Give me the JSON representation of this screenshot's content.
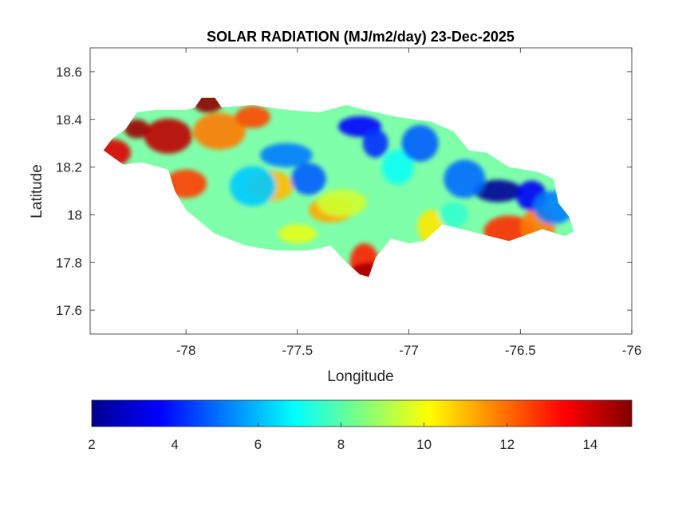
{
  "title": "SOLAR RADIATION (MJ/m2/day) 23-Dec-2025",
  "xlabel": "Longitude",
  "ylabel": "Latitude",
  "colors": {
    "axis": "#262626",
    "background": "#ffffff",
    "jet": [
      "#00008f",
      "#0000ff",
      "#00ffff",
      "#ffff00",
      "#ff0000",
      "#800000"
    ]
  },
  "chart_data": {
    "type": "heatmap",
    "map_region": "island-shaped filled contour field",
    "xlim": [
      -78.43,
      -76
    ],
    "ylim": [
      17.5,
      18.7
    ],
    "xticks": [
      -78,
      -77.5,
      -77,
      -76.5,
      -76
    ],
    "xtick_labels": [
      "-78",
      "-77.5",
      "-77",
      "-76.5",
      "-76"
    ],
    "yticks": [
      17.6,
      17.8,
      18,
      18.2,
      18.4,
      18.6
    ],
    "ytick_labels": [
      "17.6",
      "17.8",
      "18",
      "18.2",
      "18.4",
      "18.6"
    ],
    "colorbar": {
      "orientation": "horizontal",
      "colormap": "jet",
      "range": [
        2,
        15
      ],
      "ticks": [
        2,
        4,
        6,
        8,
        10,
        12,
        14
      ],
      "tick_labels": [
        "2",
        "4",
        "6",
        "8",
        "10",
        "12",
        "14"
      ]
    },
    "outline": [
      [
        -78.37,
        18.27
      ],
      [
        -78.33,
        18.32
      ],
      [
        -78.27,
        18.36
      ],
      [
        -78.22,
        18.43
      ],
      [
        -78.13,
        18.44
      ],
      [
        -78.0,
        18.44
      ],
      [
        -77.96,
        18.45
      ],
      [
        -77.93,
        18.49
      ],
      [
        -77.87,
        18.49
      ],
      [
        -77.84,
        18.45
      ],
      [
        -77.7,
        18.46
      ],
      [
        -77.55,
        18.44
      ],
      [
        -77.4,
        18.43
      ],
      [
        -77.28,
        18.46
      ],
      [
        -77.2,
        18.44
      ],
      [
        -77.05,
        18.41
      ],
      [
        -76.9,
        18.39
      ],
      [
        -76.8,
        18.35
      ],
      [
        -76.73,
        18.27
      ],
      [
        -76.65,
        18.26
      ],
      [
        -76.55,
        18.2
      ],
      [
        -76.42,
        18.18
      ],
      [
        -76.35,
        18.15
      ],
      [
        -76.33,
        18.05
      ],
      [
        -76.28,
        17.99
      ],
      [
        -76.26,
        17.93
      ],
      [
        -76.3,
        17.91
      ],
      [
        -76.4,
        17.94
      ],
      [
        -76.55,
        17.89
      ],
      [
        -76.68,
        17.92
      ],
      [
        -76.85,
        17.96
      ],
      [
        -76.93,
        17.89
      ],
      [
        -77.0,
        17.88
      ],
      [
        -77.08,
        17.9
      ],
      [
        -77.15,
        17.82
      ],
      [
        -77.18,
        17.74
      ],
      [
        -77.22,
        17.75
      ],
      [
        -77.28,
        17.8
      ],
      [
        -77.35,
        17.87
      ],
      [
        -77.45,
        17.85
      ],
      [
        -77.6,
        17.85
      ],
      [
        -77.73,
        17.87
      ],
      [
        -77.87,
        17.92
      ],
      [
        -78.0,
        18.02
      ],
      [
        -78.05,
        18.1
      ],
      [
        -78.08,
        18.19
      ],
      [
        -78.2,
        18.22
      ],
      [
        -78.28,
        18.21
      ],
      [
        -78.37,
        18.27
      ]
    ],
    "hotspots": [
      {
        "lon": -78.22,
        "lat": 18.36,
        "value": 14.6
      },
      {
        "lon": -78.33,
        "lat": 18.26,
        "value": 13.8
      },
      {
        "lon": -78.08,
        "lat": 18.33,
        "value": 14.2
      },
      {
        "lon": -77.9,
        "lat": 18.47,
        "value": 14.8
      },
      {
        "lon": -78.0,
        "lat": 18.13,
        "value": 12.6
      },
      {
        "lon": -77.85,
        "lat": 18.35,
        "value": 11.8
      },
      {
        "lon": -77.7,
        "lat": 18.41,
        "value": 12.5
      },
      {
        "lon": -77.62,
        "lat": 18.12,
        "value": 11.0
      },
      {
        "lon": -77.2,
        "lat": 17.8,
        "value": 13.0
      },
      {
        "lon": -77.18,
        "lat": 17.75,
        "value": 14.5
      },
      {
        "lon": -76.55,
        "lat": 17.93,
        "value": 12.8
      },
      {
        "lon": -76.42,
        "lat": 17.95,
        "value": 11.8
      },
      {
        "lon": -77.35,
        "lat": 18.02,
        "value": 11.2
      },
      {
        "lon": -76.9,
        "lat": 17.95,
        "value": 10.4
      },
      {
        "lon": -77.5,
        "lat": 17.92,
        "value": 9.8
      },
      {
        "lon": -77.3,
        "lat": 18.05,
        "value": 9.5
      },
      {
        "lon": -77.05,
        "lat": 18.2,
        "value": 7.0
      },
      {
        "lon": -77.22,
        "lat": 18.37,
        "value": 3.6
      },
      {
        "lon": -77.15,
        "lat": 18.3,
        "value": 4.2
      },
      {
        "lon": -76.95,
        "lat": 18.3,
        "value": 4.8
      },
      {
        "lon": -76.6,
        "lat": 18.1,
        "value": 2.3
      },
      {
        "lon": -76.45,
        "lat": 18.08,
        "value": 3.5
      },
      {
        "lon": -76.75,
        "lat": 18.15,
        "value": 5.0
      },
      {
        "lon": -77.55,
        "lat": 18.25,
        "value": 5.2
      },
      {
        "lon": -77.45,
        "lat": 18.15,
        "value": 4.8
      },
      {
        "lon": -77.7,
        "lat": 18.12,
        "value": 6.2
      },
      {
        "lon": -76.8,
        "lat": 18.0,
        "value": 7.5
      },
      {
        "lon": -76.35,
        "lat": 18.03,
        "value": 5.2
      }
    ]
  }
}
